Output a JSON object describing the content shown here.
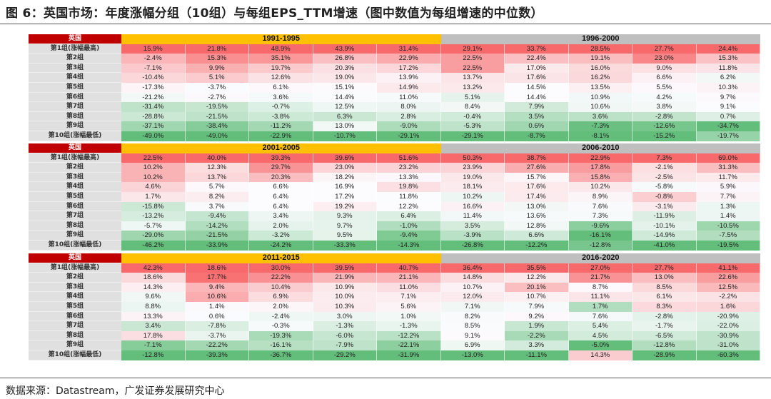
{
  "title": "图 6：英国市场：年度涨幅分组（10组）与每组EPS_TTM增速（图中数值为每组增速的中位数）",
  "source": "数据来源：Datastream，广发证券发展研究中心",
  "colors": {
    "high": "#f8696b",
    "mid": "#fcfcff",
    "low": "#63be7b",
    "country_header": "#c00000",
    "period_a": "#ffc000",
    "period_b": "#bfbfbf"
  },
  "chart_data": {
    "type": "heatmap",
    "country": "英国",
    "row_labels": [
      "第1组(涨幅最高)",
      "第2组",
      "第3组",
      "第4组",
      "第5组",
      "第6组",
      "第7组",
      "第8组",
      "第9组",
      "第10组(涨幅最低)"
    ],
    "blocks": [
      {
        "periods": [
          "1991-1995",
          "1996-2000"
        ],
        "rows": [
          [
            "15.9%",
            "21.8%",
            "48.9%",
            "43.9%",
            "31.4%",
            "29.1%",
            "33.7%",
            "28.5%",
            "27.7%",
            "24.4%"
          ],
          [
            "-2.4%",
            "15.3%",
            "35.1%",
            "26.8%",
            "22.9%",
            "22.5%",
            "22.4%",
            "19.1%",
            "23.0%",
            "15.3%"
          ],
          [
            "-7.1%",
            "9.9%",
            "19.7%",
            "20.3%",
            "17.2%",
            "22.5%",
            "17.0%",
            "16.0%",
            "9.0%",
            "11.8%"
          ],
          [
            "-10.4%",
            "5.1%",
            "12.6%",
            "19.0%",
            "13.9%",
            "13.7%",
            "17.6%",
            "16.2%",
            "6.6%",
            "6.2%"
          ],
          [
            "-17.3%",
            "-3.7%",
            "6.1%",
            "15.1%",
            "14.9%",
            "13.2%",
            "14.5%",
            "13.5%",
            "5.5%",
            "10.3%"
          ],
          [
            "-21.2%",
            "-2.7%",
            "3.6%",
            "14.4%",
            "11.0%",
            "5.1%",
            "14.4%",
            "10.9%",
            "4.2%",
            "9.7%"
          ],
          [
            "-31.4%",
            "-19.5%",
            "-0.7%",
            "12.5%",
            "8.0%",
            "8.4%",
            "7.9%",
            "10.6%",
            "3.8%",
            "9.1%"
          ],
          [
            "-28.8%",
            "-21.5%",
            "-3.8%",
            "6.3%",
            "2.8%",
            "-0.4%",
            "3.5%",
            "3.6%",
            "-2.8%",
            "0.7%"
          ],
          [
            "-37.1%",
            "-38.4%",
            "-11.2%",
            "13.0%",
            "-9.0%",
            "-5.3%",
            "0.6%",
            "-7.3%",
            "-12.6%",
            "-34.7%"
          ],
          [
            "-49.0%",
            "-49.0%",
            "-22.9%",
            "-10.7%",
            "-29.1%",
            "-29.1%",
            "-8.7%",
            "-8.1%",
            "-15.2%",
            "-19.7%"
          ]
        ]
      },
      {
        "periods": [
          "2001-2005",
          "2006-2010"
        ],
        "rows": [
          [
            "22.5%",
            "40.0%",
            "39.3%",
            "39.6%",
            "51.6%",
            "50.3%",
            "38.7%",
            "22.9%",
            "7.3%",
            "69.0%"
          ],
          [
            "10.2%",
            "12.3%",
            "29.7%",
            "23.0%",
            "23.2%",
            "23.9%",
            "27.6%",
            "17.8%",
            "-2.1%",
            "31.3%"
          ],
          [
            "10.2%",
            "13.7%",
            "20.3%",
            "18.2%",
            "13.3%",
            "19.0%",
            "15.7%",
            "15.8%",
            "-2.5%",
            "11.7%"
          ],
          [
            "4.6%",
            "5.7%",
            "6.6%",
            "16.9%",
            "19.8%",
            "18.1%",
            "17.6%",
            "10.2%",
            "-5.8%",
            "5.9%"
          ],
          [
            "1.7%",
            "8.2%",
            "6.4%",
            "17.2%",
            "11.8%",
            "10.2%",
            "17.4%",
            "8.9%",
            "-0.8%",
            "7.7%"
          ],
          [
            "-15.8%",
            "3.7%",
            "6.4%",
            "19.2%",
            "12.2%",
            "16.6%",
            "13.0%",
            "7.6%",
            "-3.1%",
            "1.3%"
          ],
          [
            "-13.2%",
            "-9.4%",
            "3.4%",
            "9.3%",
            "6.4%",
            "11.4%",
            "13.6%",
            "7.3%",
            "-11.9%",
            "1.4%"
          ],
          [
            "-5.7%",
            "-14.2%",
            "2.0%",
            "9.7%",
            "-1.0%",
            "3.5%",
            "12.8%",
            "-9.6%",
            "-10.1%",
            "-10.5%"
          ],
          [
            "-29.0%",
            "-21.5%",
            "-3.2%",
            "9.5%",
            "-9.4%",
            "-3.9%",
            "6.6%",
            "-16.1%",
            "-14.9%",
            "-7.5%"
          ],
          [
            "-46.2%",
            "-33.9%",
            "-24.2%",
            "-33.3%",
            "-14.3%",
            "-26.8%",
            "-12.2%",
            "-12.8%",
            "-41.0%",
            "-19.5%"
          ]
        ]
      },
      {
        "periods": [
          "2011-2015",
          "2016-2020"
        ],
        "rows": [
          [
            "42.3%",
            "18.6%",
            "30.0%",
            "39.5%",
            "40.7%",
            "36.4%",
            "35.5%",
            "27.0%",
            "27.7%",
            "41.1%"
          ],
          [
            "18.6%",
            "17.7%",
            "22.2%",
            "21.9%",
            "21.1%",
            "14.8%",
            "12.2%",
            "21.7%",
            "13.0%",
            "22.6%"
          ],
          [
            "14.3%",
            "9.4%",
            "10.4%",
            "10.9%",
            "11.0%",
            "10.7%",
            "20.1%",
            "8.7%",
            "8.5%",
            "12.5%"
          ],
          [
            "9.6%",
            "10.6%",
            "6.9%",
            "10.0%",
            "7.1%",
            "12.0%",
            "10.7%",
            "11.1%",
            "6.1%",
            "-2.2%"
          ],
          [
            "8.8%",
            "1.4%",
            "2.0%",
            "10.3%",
            "5.6%",
            "7.1%",
            "7.9%",
            "1.7%",
            "8.3%",
            "1.6%"
          ],
          [
            "13.3%",
            "0.6%",
            "-2.4%",
            "3.0%",
            "1.0%",
            "8.2%",
            "9.2%",
            "7.6%",
            "-2.8%",
            "-20.9%"
          ],
          [
            "3.4%",
            "-7.8%",
            "-0.3%",
            "-1.3%",
            "-1.3%",
            "8.5%",
            "1.9%",
            "5.4%",
            "-1.7%",
            "-22.0%"
          ],
          [
            "17.8%",
            "-3.7%",
            "-19.3%",
            "-6.0%",
            "-12.2%",
            "9.1%",
            "-2.2%",
            "4.5%",
            "-6.5%",
            "-30.9%"
          ],
          [
            "-7.1%",
            "-22.2%",
            "-16.1%",
            "-7.9%",
            "-22.1%",
            "6.9%",
            "3.3%",
            "-5.0%",
            "-12.8%",
            "-31.0%"
          ],
          [
            "-12.8%",
            "-39.3%",
            "-36.7%",
            "-29.2%",
            "-31.9%",
            "-13.0%",
            "-11.1%",
            "14.3%",
            "-28.9%",
            "-60.3%"
          ]
        ]
      }
    ]
  }
}
